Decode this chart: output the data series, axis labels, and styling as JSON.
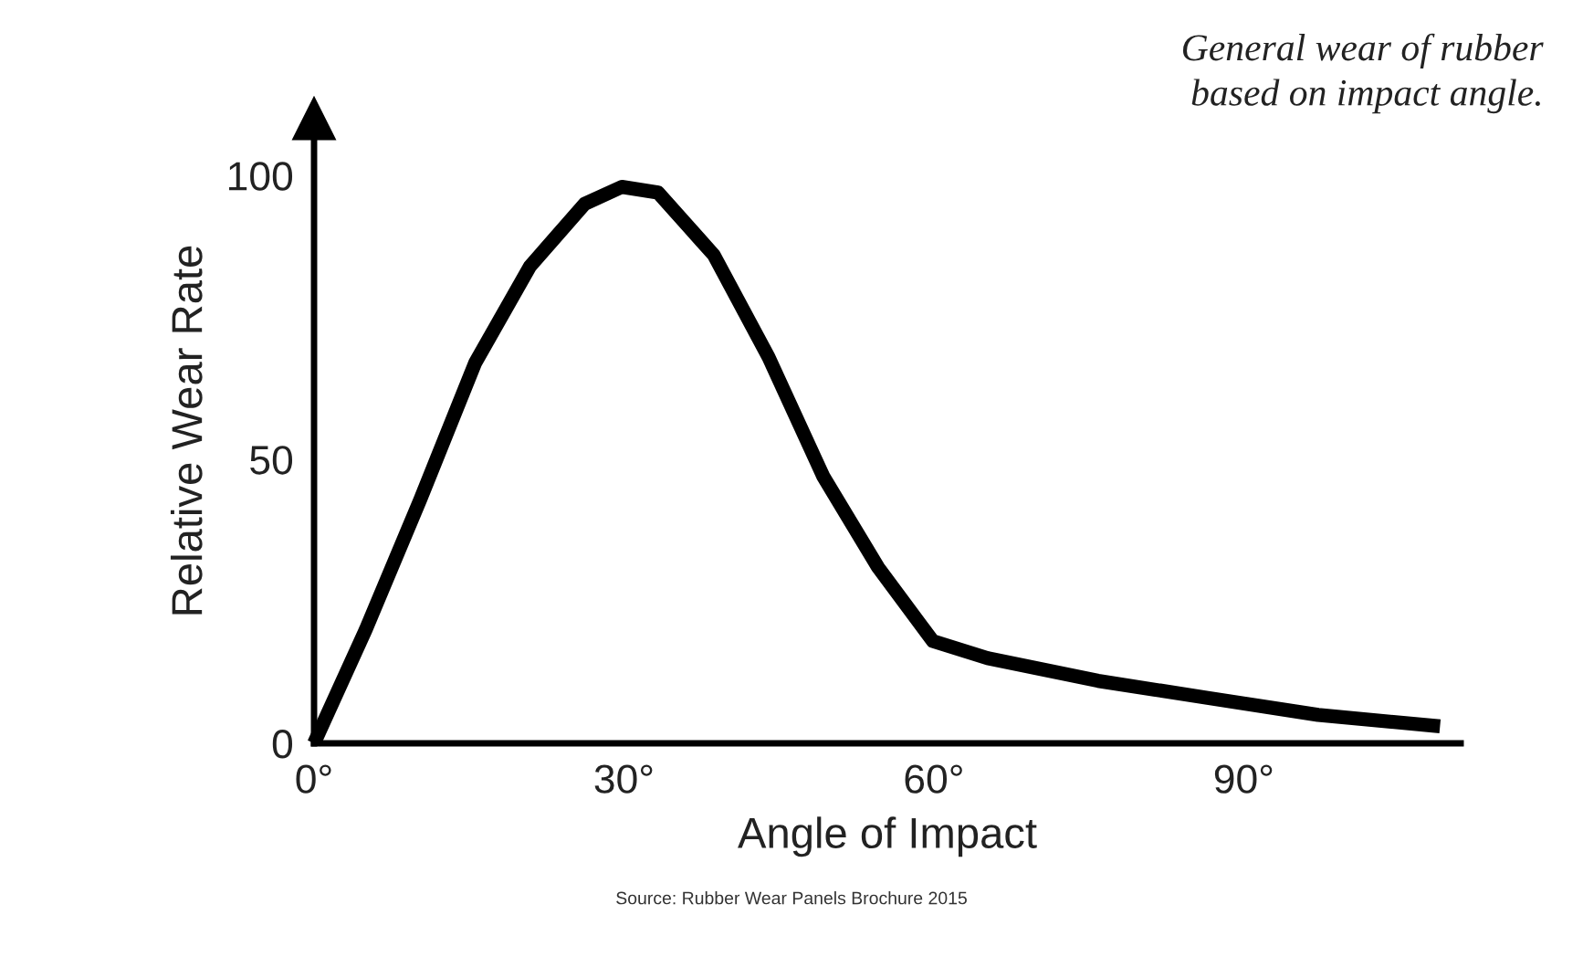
{
  "chart_data": {
    "type": "line",
    "title": "General wear of rubber\nbased on impact angle.",
    "xlabel": "Angle of Impact",
    "ylabel": "Relative Wear Rate",
    "x": [
      0,
      5.0,
      10.3,
      15.6,
      20.9,
      26.2,
      29.8,
      33.3,
      38.7,
      44.0,
      49.3,
      54.6,
      59.9,
      65.2,
      75.9,
      86.5,
      97.2,
      109
    ],
    "series": [
      {
        "color": "#000000",
        "values": [
          0,
          20,
          43,
          67,
          84,
          95,
          98,
          97,
          86,
          68,
          47,
          31,
          18,
          15,
          11,
          8,
          5,
          3
        ]
      }
    ],
    "xlim": [
      0,
      111
    ],
    "ylim": [
      0,
      110
    ],
    "xticks": [
      {
        "value": 0,
        "label": "0°"
      },
      {
        "value": 30,
        "label": "30°"
      },
      {
        "value": 60,
        "label": "60°"
      },
      {
        "value": 90,
        "label": "90°"
      }
    ],
    "yticks": [
      0,
      50,
      100
    ],
    "grid": false,
    "legend": false,
    "marker": "none",
    "line_style": "solid",
    "annotations": [
      "Source: Rubber Wear Panels Brochure 2015"
    ]
  }
}
